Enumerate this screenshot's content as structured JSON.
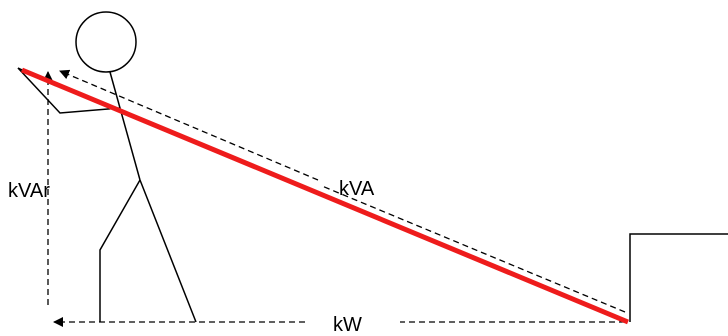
{
  "labels": {
    "kva": "kVA",
    "kvar": "kVAr",
    "kw": "kW"
  }
}
